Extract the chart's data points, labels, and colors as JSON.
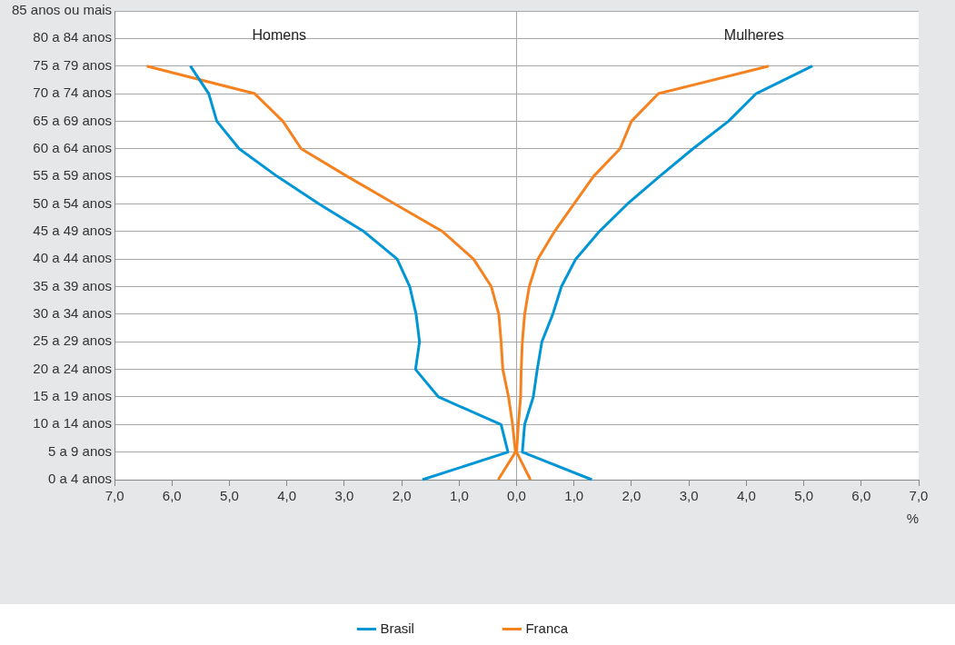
{
  "chart_data": {
    "type": "line",
    "orientation": "horizontal",
    "categories": [
      "85 anos ou mais",
      "80 a 84 anos",
      "75 a 79 anos",
      "70 a 74 anos",
      "65 a 69 anos",
      "60 a 64 anos",
      "55 a 59 anos",
      "50 a 54 anos",
      "45 a 49 anos",
      "40 a 44 anos",
      "35 a 39 anos",
      "30 a 34 anos",
      "25 a 29 anos",
      "20 a 24 anos",
      "15 a 19 anos",
      "10 a 14 anos",
      "5 a 9 anos",
      "0 a 4 anos"
    ],
    "series": [
      {
        "name": "Brasil",
        "color": "#0096d6",
        "values": [
          null,
          null,
          -5.68,
          -5.36,
          -5.22,
          -4.83,
          -4.17,
          -3.44,
          -2.66,
          -2.08,
          -1.86,
          -1.75,
          -1.69,
          -1.76,
          -1.36,
          -0.27,
          -0.15,
          -1.64
        ]
      },
      {
        "color": "#0096d6",
        "values": [
          null,
          null,
          5.15,
          4.17,
          3.69,
          3.07,
          2.49,
          1.93,
          1.44,
          1.03,
          0.78,
          0.63,
          0.44,
          0.36,
          0.29,
          0.14,
          0.1,
          1.31
        ]
      },
      {
        "name": "Franca",
        "color": "#f5821f",
        "values": [
          null,
          null,
          -6.44,
          -4.56,
          -4.07,
          -3.75,
          -2.95,
          -2.12,
          -1.29,
          -0.75,
          -0.44,
          -0.31,
          -0.27,
          -0.24,
          -0.14,
          -0.07,
          -0.02,
          -0.32
        ]
      },
      {
        "color": "#f5821f",
        "values": [
          null,
          null,
          4.39,
          2.47,
          2.0,
          1.8,
          1.34,
          1.0,
          0.66,
          0.37,
          0.22,
          0.14,
          0.1,
          0.08,
          0.07,
          0.03,
          0,
          0.24
        ]
      }
    ],
    "xlim": [
      -7,
      7
    ],
    "xticks": [
      {
        "value": -7,
        "label": "7,0"
      },
      {
        "value": -6,
        "label": "6,0"
      },
      {
        "value": -5,
        "label": "5,0"
      },
      {
        "value": -4,
        "label": "4,0"
      },
      {
        "value": -3,
        "label": "3,0"
      },
      {
        "value": -2,
        "label": "2,0"
      },
      {
        "value": -1,
        "label": "1,0"
      },
      {
        "value": 0,
        "label": "0,0"
      },
      {
        "value": 1,
        "label": "1,0"
      },
      {
        "value": 2,
        "label": "2,0"
      },
      {
        "value": 3,
        "label": "3,0"
      },
      {
        "value": 4,
        "label": "4,0"
      },
      {
        "value": 5,
        "label": "5,0"
      },
      {
        "value": 6,
        "label": "6,0"
      },
      {
        "value": 7,
        "label": "7,0"
      }
    ],
    "xlabel": "%",
    "annotations": [
      "Homens",
      "Mulheres"
    ],
    "ref_lines": [
      {
        "axis": "x",
        "value": 0,
        "color": "#a6a6a6"
      }
    ],
    "grid": "y",
    "legend": "bottom",
    "marker": "none",
    "line_style": "solid"
  }
}
